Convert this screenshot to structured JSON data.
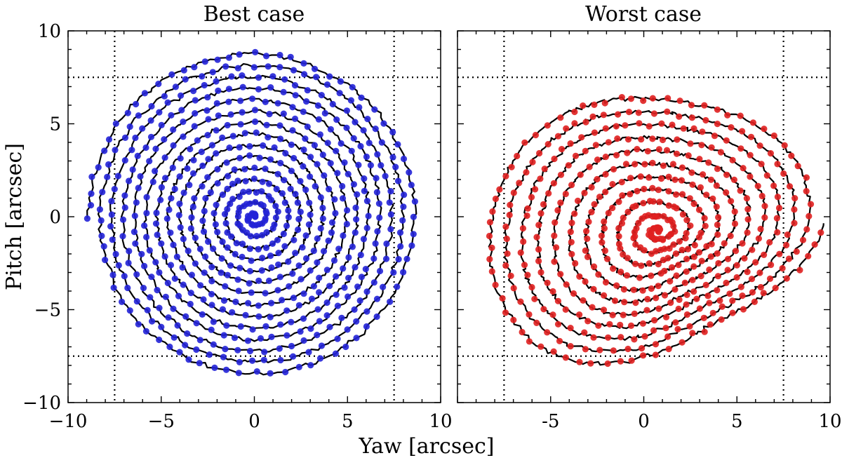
{
  "figure": {
    "xlabel": "Yaw [arcsec]",
    "ylabel": "Pitch [arcsec]"
  },
  "chart_data": [
    {
      "type": "scatter",
      "title": "Best case",
      "xlim": [
        -10,
        10
      ],
      "ylim": [
        -10,
        10
      ],
      "x_ticks": [
        -10,
        -5,
        0,
        5,
        10
      ],
      "x_tick_labels": [
        "−10",
        "−5",
        "0",
        "5",
        "10"
      ],
      "y_ticks": [
        -10,
        -5,
        0,
        5,
        10
      ],
      "y_tick_labels": [
        "−10",
        "−5",
        "0",
        "5",
        "10"
      ],
      "reference_lines": {
        "x": [
          -7.5,
          7.5
        ],
        "y": [
          -7.5,
          7.5
        ],
        "style": "dotted"
      },
      "spiral": {
        "shape": "archimedean",
        "center": [
          0,
          0
        ],
        "max_radius": 8.9,
        "turns": 14.5,
        "ellipticity": 1.0
      },
      "marker_color": "#2424d8",
      "line_color": "#000000",
      "grid": false
    },
    {
      "type": "scatter",
      "title": "Worst case",
      "xlim": [
        -10,
        10
      ],
      "ylim": [
        -10,
        10
      ],
      "x_ticks": [
        -10,
        -5,
        0,
        5,
        10
      ],
      "x_tick_labels": [
        "",
        "-5",
        "0",
        "5",
        "10"
      ],
      "y_ticks": [
        -10,
        -5,
        0,
        5,
        10
      ],
      "y_tick_labels": [
        "",
        "",
        "",
        "",
        ""
      ],
      "reference_lines": {
        "x": [
          -7.5,
          7.5
        ],
        "y": [
          -7.5,
          7.5
        ],
        "style": "dotted"
      },
      "spiral": {
        "shape": "distorted",
        "center": [
          0.8,
          -0.8
        ],
        "max_radius": 8.6,
        "turns": 11,
        "ellipticity": 0.9
      },
      "marker_color": "#e02020",
      "line_color": "#000000",
      "grid": false
    }
  ]
}
